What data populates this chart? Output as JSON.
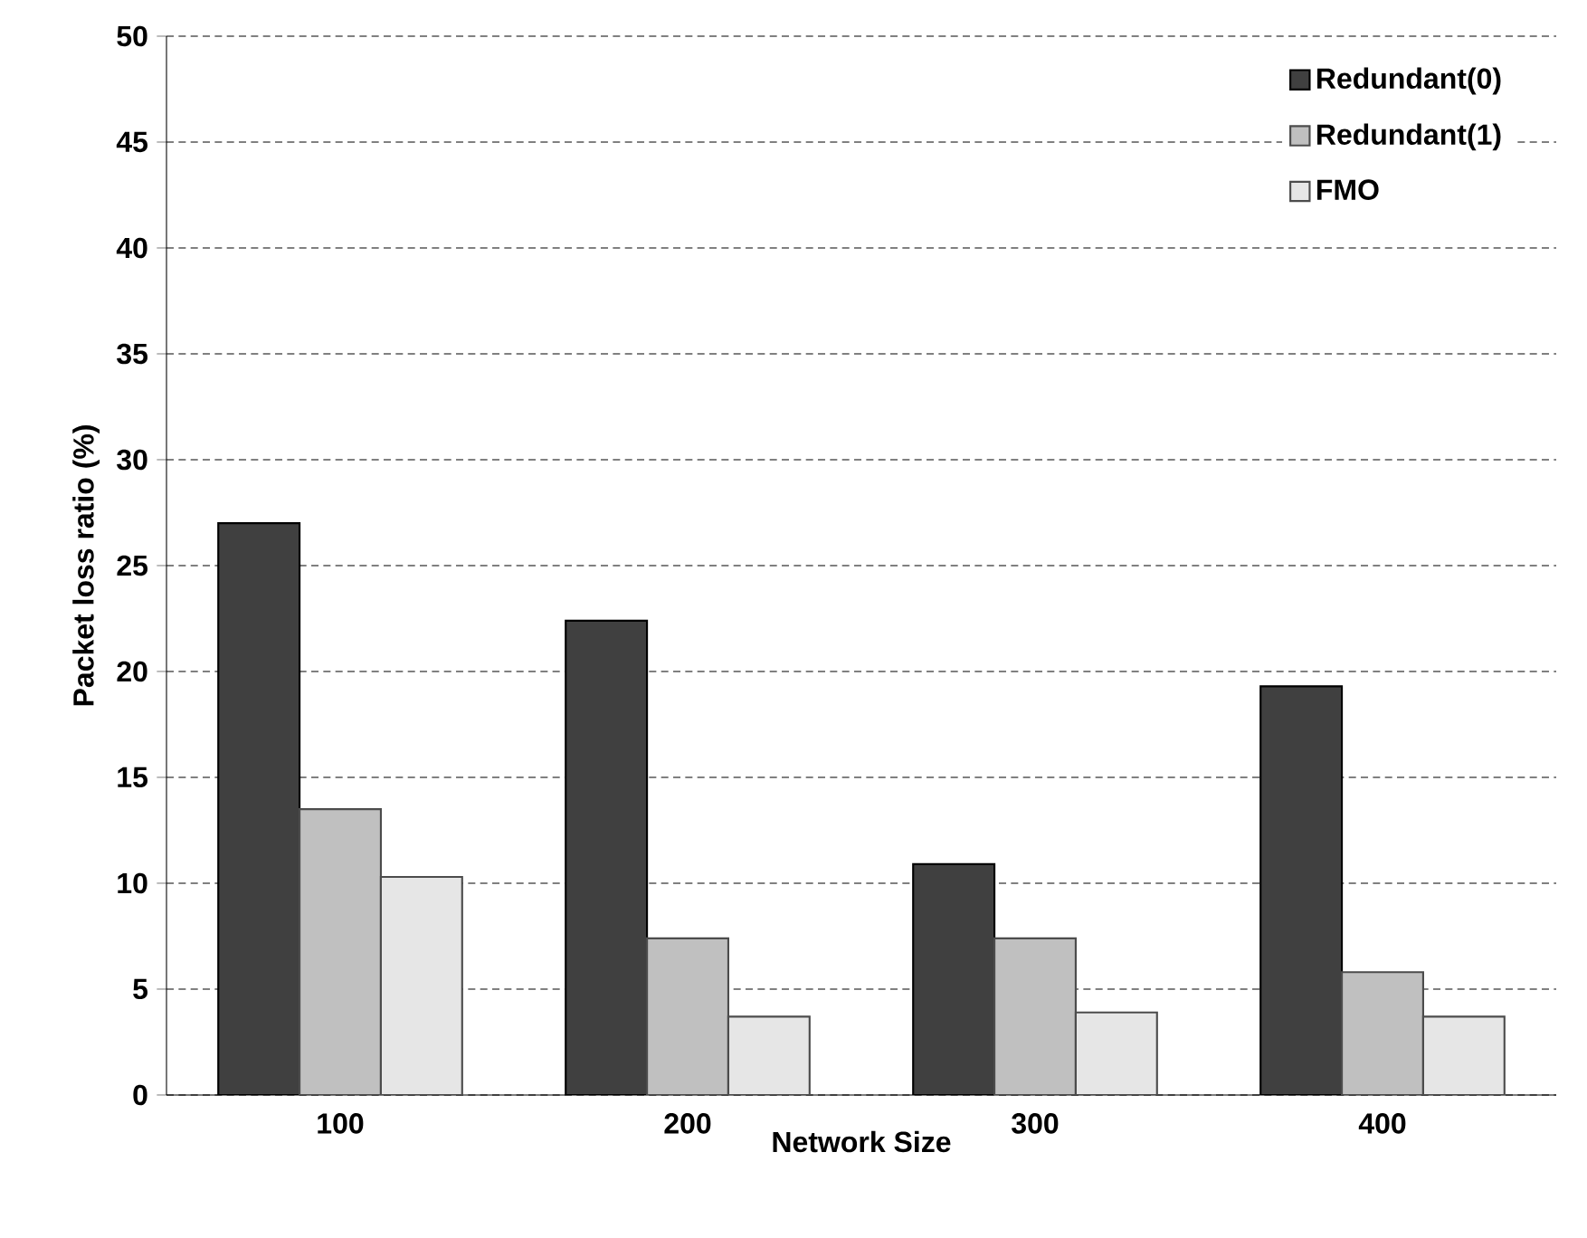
{
  "chart_data": {
    "type": "bar",
    "xlabel": "Network Size",
    "ylabel": "Packet loss ratio (%)",
    "categories": [
      "100",
      "200",
      "300",
      "400"
    ],
    "series": [
      {
        "name": "Redundant(0)",
        "color": "#404040",
        "values": [
          27.0,
          22.4,
          10.9,
          19.3
        ]
      },
      {
        "name": "Redundant(1)",
        "color": "#c0c0c0",
        "values": [
          13.5,
          7.4,
          7.4,
          5.8
        ]
      },
      {
        "name": "FMO",
        "color": "#e6e6e6",
        "values": [
          10.3,
          3.7,
          3.9,
          3.7
        ]
      }
    ],
    "ylim": [
      0,
      50
    ],
    "yticks": [
      0,
      5,
      10,
      15,
      20,
      25,
      30,
      35,
      40,
      45,
      50
    ],
    "grid": "y",
    "legend": "top right"
  }
}
